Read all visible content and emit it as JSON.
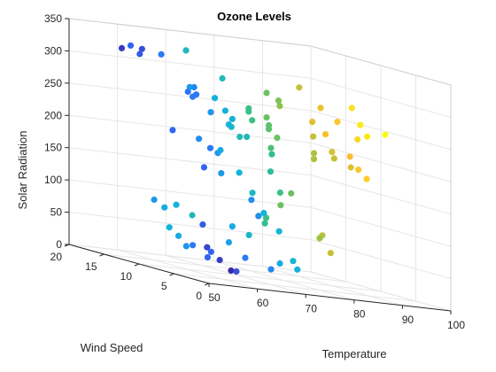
{
  "chart_data": {
    "type": "scatter",
    "dimensions": 3,
    "title": "Ozone Levels",
    "xlabel": "Temperature",
    "ylabel": "Wind Speed",
    "zlabel": "Solar Radiation",
    "xlim": [
      50,
      100
    ],
    "ylim": [
      0,
      20
    ],
    "zlim": [
      0,
      350
    ],
    "xticks": [
      "50",
      "60",
      "70",
      "80",
      "90",
      "100"
    ],
    "yticks": [
      "0",
      "5",
      "10",
      "15",
      "20"
    ],
    "zticks": [
      "0",
      "50",
      "100",
      "150",
      "200",
      "250",
      "300",
      "350"
    ],
    "grid": true,
    "color_mapped_to": "Temperature",
    "colormap": [
      "#3e26a8",
      "#2f6ffa",
      "#12b2df",
      "#33c08b",
      "#a3c33d",
      "#fbbf2e",
      "#f9fb15"
    ],
    "points": [
      [
        70,
        19.5,
        45
      ],
      [
        69,
        19.5,
        75
      ],
      [
        67,
        19.6,
        85
      ],
      [
        70,
        18.5,
        83
      ],
      [
        73,
        18.3,
        70
      ],
      [
        69,
        17.5,
        37
      ],
      [
        67,
        15.0,
        27
      ],
      [
        64,
        12.0,
        35
      ],
      [
        62,
        8.5,
        25
      ],
      [
        58,
        4.0,
        31
      ],
      [
        56,
        1.0,
        22
      ],
      [
        60,
        3.0,
        18
      ],
      [
        62,
        8.0,
        35
      ],
      [
        59,
        6.5,
        44
      ],
      [
        64,
        4.5,
        38
      ],
      [
        61,
        8.5,
        75
      ],
      [
        68,
        9.6,
        50
      ],
      [
        69,
        9.8,
        75
      ],
      [
        72,
        9.5,
        65
      ],
      [
        76,
        10.0,
        85
      ],
      [
        77,
        10.5,
        93
      ],
      [
        66,
        5.0,
        128
      ],
      [
        66,
        4.0,
        106
      ],
      [
        70,
        6.0,
        108
      ],
      [
        71,
        4.5,
        85
      ],
      [
        69,
        3.0,
        38
      ],
      [
        71,
        2.5,
        45
      ],
      [
        70,
        1.2,
        35
      ],
      [
        65,
        1.5,
        30
      ],
      [
        62,
        9.0,
        163
      ],
      [
        64,
        9.5,
        193
      ],
      [
        67,
        10.5,
        185
      ],
      [
        69,
        11.5,
        188
      ],
      [
        73,
        10.5,
        215
      ],
      [
        70,
        9.5,
        160
      ],
      [
        67,
        10.0,
        155
      ],
      [
        72,
        9.0,
        132
      ],
      [
        77,
        8.5,
        138
      ],
      [
        75,
        8.5,
        169
      ],
      [
        80,
        10.5,
        115
      ],
      [
        80,
        9.0,
        138
      ],
      [
        85,
        8.0,
        80
      ],
      [
        83,
        7.0,
        77
      ],
      [
        86,
        7.5,
        55
      ],
      [
        76,
        9.0,
        195
      ],
      [
        78,
        10.5,
        202
      ],
      [
        72,
        12.0,
        225
      ],
      [
        77,
        12.5,
        238
      ],
      [
        80,
        12.5,
        245
      ],
      [
        79,
        11.5,
        229
      ],
      [
        77,
        13.0,
        250
      ],
      [
        77,
        13.0,
        255
      ],
      [
        66,
        12.5,
        200
      ],
      [
        62,
        13.5,
        207
      ],
      [
        64,
        16.5,
        317
      ],
      [
        58,
        18.0,
        317
      ],
      [
        61,
        17.5,
        312
      ],
      [
        60,
        16.5,
        322
      ],
      [
        62,
        19.5,
        320
      ],
      [
        72,
        18.5,
        324
      ],
      [
        64,
        11.5,
        270
      ],
      [
        65,
        12.5,
        279
      ],
      [
        64,
        12.0,
        265
      ],
      [
        63,
        12.0,
        272
      ],
      [
        67,
        14.5,
        275
      ],
      [
        70,
        11.5,
        250
      ],
      [
        70,
        11.0,
        230
      ],
      [
        73,
        11.5,
        212
      ],
      [
        70,
        13.0,
        265
      ],
      [
        73,
        14.0,
        295
      ],
      [
        80,
        12.5,
        283
      ],
      [
        82,
        12.0,
        266
      ],
      [
        86,
        12.0,
        298
      ],
      [
        81,
        11.5,
        275
      ],
      [
        89,
        11.0,
        272
      ],
      [
        94,
        10.0,
        279
      ],
      [
        88,
        11.5,
        248
      ],
      [
        91,
        10.0,
        255
      ],
      [
        95,
        9.5,
        255
      ],
      [
        98,
        8.0,
        247
      ],
      [
        95,
        8.5,
        240
      ],
      [
        93,
        8.5,
        234
      ],
      [
        90,
        7.5,
        208
      ],
      [
        87,
        8.0,
        211
      ],
      [
        91,
        7.0,
        190
      ],
      [
        92,
        6.5,
        178
      ],
      [
        88,
        6.0,
        194
      ],
      [
        86,
        7.0,
        203
      ],
      [
        84,
        8.5,
        205
      ],
      [
        84,
        8.5,
        196
      ],
      [
        90,
        11.0,
        232
      ],
      [
        86,
        10.0,
        228
      ],
      [
        80,
        11.0,
        218
      ],
      [
        79,
        11.5,
        235
      ],
      [
        70,
        10.5,
        240
      ],
      [
        67,
        11.5,
        245
      ]
    ]
  }
}
